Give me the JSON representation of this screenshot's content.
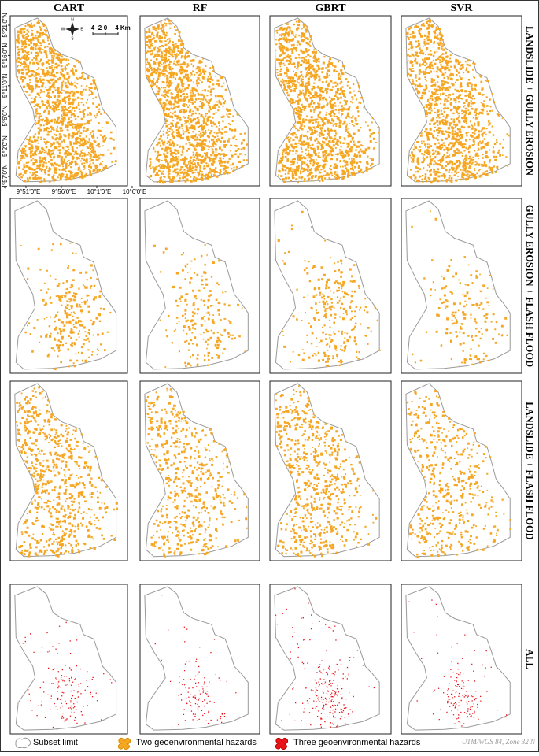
{
  "columns": [
    "CART",
    "RF",
    "GBRT",
    "SVR"
  ],
  "rows": [
    "LANDSLIDE + GULLY EROSION",
    "GULLY EROSION + FLASH FLOOD",
    "LANDSLIDE + FLASH FLOOD",
    "ALL"
  ],
  "map_axes": {
    "latitude": [
      "5°21'0\"N",
      "5°16'0\"N",
      "5°11'0\"N",
      "5°6'0\"N",
      "5°2'0\"N",
      "4°57'0\"N"
    ],
    "longitude": [
      "9°51'0\"E",
      "9°56'0\"E",
      "10°1'0\"E",
      "10°6'0\"E"
    ]
  },
  "north_arrow": {
    "n": "N",
    "s": "S",
    "e": "E",
    "w": "W"
  },
  "scale_bar": [
    "4",
    "2",
    "0",
    "4 Km"
  ],
  "legend": [
    "Subset limit",
    "Two geoenvironmental hazards",
    "Three geoenvironmental hazards"
  ],
  "footnote": "UTM/WGS 84, Zone 32 N"
}
